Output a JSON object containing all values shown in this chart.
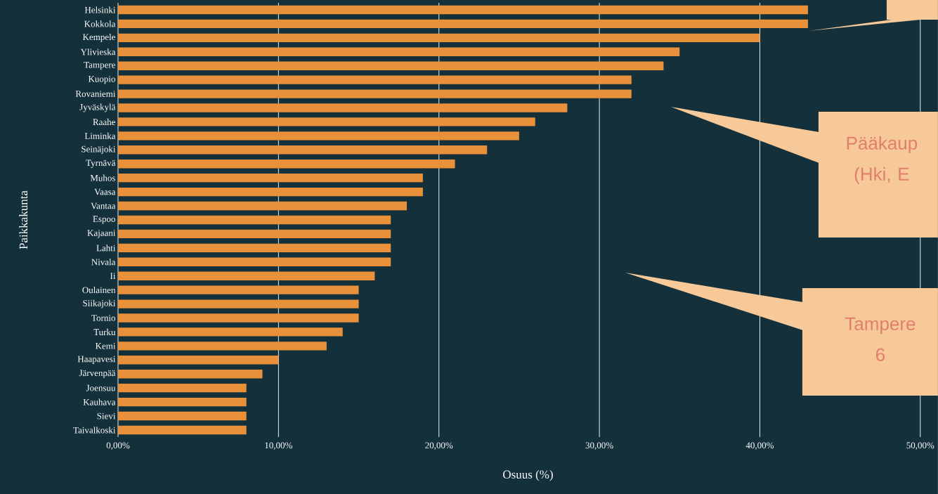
{
  "chart_data": {
    "type": "bar",
    "orientation": "horizontal",
    "xlabel": "Osuus (%)",
    "ylabel": "Paikkakunta",
    "categories": [
      "Helsinki",
      "Kokkola",
      "Kempele",
      "Ylivieska",
      "Tampere",
      "Kuopio",
      "Rovaniemi",
      "Jyväskylä",
      "Raahe",
      "Liminka",
      "Seinäjoki",
      "Tyrnävä",
      "Muhos",
      "Vaasa",
      "Vantaa",
      "Espoo",
      "Kajaani",
      "Lahti",
      "Nivala",
      "Ii",
      "Oulainen",
      "Siikajoki",
      "Tornio",
      "Turku",
      "Kemi",
      "Haapavesi",
      "Järvenpää",
      "Joensuu",
      "Kauhava",
      "Sievi",
      "Taivalkoski"
    ],
    "values": [
      43,
      43,
      40,
      35,
      34,
      32,
      32,
      28,
      26,
      25,
      23,
      21,
      19,
      19,
      18,
      17,
      17,
      17,
      17,
      16,
      15,
      15,
      15,
      14,
      13,
      10,
      9,
      8,
      8,
      8,
      8
    ],
    "color": "#e8913a",
    "xlim": [
      0,
      51.1
    ],
    "xticks": [
      {
        "value": 0,
        "label": "0,00%"
      },
      {
        "value": 10,
        "label": "10,00%"
      },
      {
        "value": 20,
        "label": "20,00%"
      },
      {
        "value": 30,
        "label": "30,00%"
      },
      {
        "value": 40,
        "label": "40,00%"
      },
      {
        "value": 50,
        "label": "50,00%"
      }
    ],
    "grid": "x",
    "annotations": [
      "Pääkaup (Hki, E",
      "Tampere 6"
    ]
  }
}
